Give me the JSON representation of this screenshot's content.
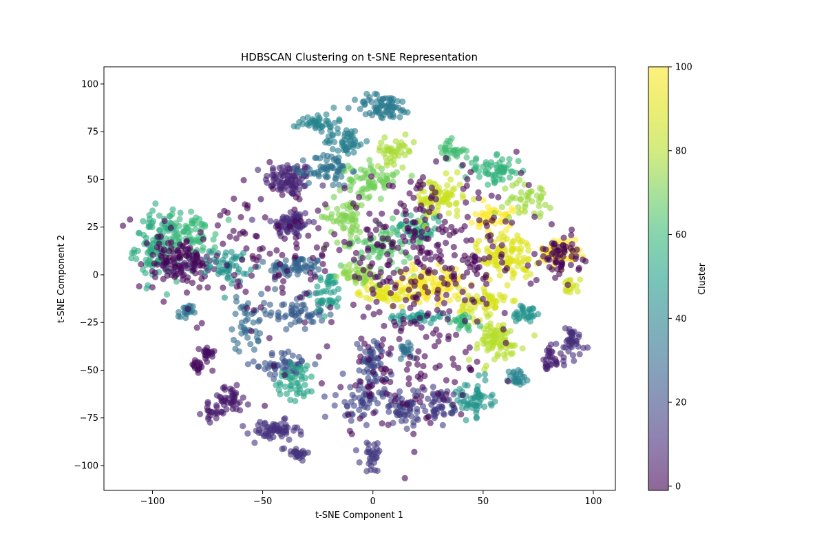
{
  "chart_data": {
    "type": "scatter",
    "title": "HDBSCAN Clustering on t-SNE Representation",
    "xlabel": "t-SNE Component 1",
    "ylabel": "t-SNE Component 2",
    "xlim": [
      -122,
      110
    ],
    "ylim": [
      -113,
      109
    ],
    "xticks": [
      -100,
      -50,
      0,
      50,
      100
    ],
    "yticks": [
      -100,
      -75,
      -50,
      -25,
      0,
      25,
      50,
      75,
      100
    ],
    "xtick_labels": [
      "−100",
      "−50",
      "0",
      "50",
      "100"
    ],
    "ytick_labels": [
      "−100",
      "−75",
      "−50",
      "−25",
      "0",
      "25",
      "50",
      "75",
      "100"
    ],
    "colorbar": {
      "label": "Cluster",
      "range": [
        -1,
        100
      ],
      "ticks": [
        0,
        20,
        40,
        60,
        80,
        100
      ],
      "tick_labels": [
        "0",
        "20",
        "40",
        "60",
        "80",
        "100"
      ],
      "colormap": "viridis",
      "alpha": 0.6
    },
    "grid": false,
    "noise_color": "#440154",
    "groups": [
      {
        "center": [
          -38,
          50
        ],
        "spread": [
          10,
          8
        ],
        "n": 90,
        "cluster": 8
      },
      {
        "center": [
          -37,
          27
        ],
        "spread": [
          8,
          7
        ],
        "n": 70,
        "cluster": 10
      },
      {
        "center": [
          -35,
          4
        ],
        "spread": [
          11,
          5
        ],
        "n": 60,
        "cluster": 28
      },
      {
        "center": [
          -35,
          -20
        ],
        "spread": [
          12,
          8
        ],
        "n": 60,
        "cluster": 25
      },
      {
        "center": [
          -40,
          -47
        ],
        "spread": [
          12,
          6
        ],
        "n": 50,
        "cluster": 22
      },
      {
        "center": [
          -57,
          -25
        ],
        "spread": [
          6,
          14
        ],
        "n": 40,
        "cluster": 30
      },
      {
        "center": [
          -98,
          15
        ],
        "spread": [
          9,
          16
        ],
        "n": 110,
        "cluster": 55
      },
      {
        "center": [
          -82,
          20
        ],
        "spread": [
          10,
          12
        ],
        "n": 70,
        "cluster": 60
      },
      {
        "center": [
          -85,
          5
        ],
        "spread": [
          12,
          6
        ],
        "n": 60,
        "cluster": 3
      },
      {
        "center": [
          -65,
          5
        ],
        "spread": [
          8,
          8
        ],
        "n": 50,
        "cluster": 45
      },
      {
        "center": [
          -85,
          -20
        ],
        "spread": [
          3,
          4
        ],
        "n": 20,
        "cluster": 35
      },
      {
        "center": [
          -75,
          -42
        ],
        "spread": [
          3,
          5
        ],
        "n": 20,
        "cluster": 2
      },
      {
        "center": [
          -80,
          -48
        ],
        "spread": [
          3,
          4
        ],
        "n": 15,
        "cluster": 1
      },
      {
        "center": [
          -65,
          -65
        ],
        "spread": [
          8,
          6
        ],
        "n": 40,
        "cluster": 5
      },
      {
        "center": [
          -72,
          -72
        ],
        "spread": [
          5,
          4
        ],
        "n": 20,
        "cluster": 6
      },
      {
        "center": [
          -45,
          -82
        ],
        "spread": [
          10,
          5
        ],
        "n": 60,
        "cluster": 12
      },
      {
        "center": [
          -35,
          -93
        ],
        "spread": [
          6,
          3
        ],
        "n": 25,
        "cluster": 13
      },
      {
        "center": [
          -25,
          80
        ],
        "spread": [
          8,
          4
        ],
        "n": 40,
        "cluster": 40
      },
      {
        "center": [
          -12,
          70
        ],
        "spread": [
          9,
          7
        ],
        "n": 50,
        "cluster": 38
      },
      {
        "center": [
          -20,
          55
        ],
        "spread": [
          9,
          8
        ],
        "n": 60,
        "cluster": 33
      },
      {
        "center": [
          5,
          88
        ],
        "spread": [
          12,
          6
        ],
        "n": 70,
        "cluster": 36
      },
      {
        "center": [
          -20,
          -10
        ],
        "spread": [
          6,
          10
        ],
        "n": 40,
        "cluster": 50
      },
      {
        "center": [
          -35,
          -55
        ],
        "spread": [
          8,
          10
        ],
        "n": 45,
        "cluster": 52
      },
      {
        "center": [
          -12,
          30
        ],
        "spread": [
          9,
          12
        ],
        "n": 60,
        "cluster": 72
      },
      {
        "center": [
          0,
          50
        ],
        "spread": [
          10,
          8
        ],
        "n": 60,
        "cluster": 70
      },
      {
        "center": [
          10,
          65
        ],
        "spread": [
          8,
          6
        ],
        "n": 40,
        "cluster": 78
      },
      {
        "center": [
          35,
          65
        ],
        "spread": [
          6,
          5
        ],
        "n": 30,
        "cluster": 62
      },
      {
        "center": [
          55,
          55
        ],
        "spread": [
          12,
          6
        ],
        "n": 60,
        "cluster": 58
      },
      {
        "center": [
          20,
          25
        ],
        "spread": [
          10,
          8
        ],
        "n": 50,
        "cluster": 54
      },
      {
        "center": [
          5,
          15
        ],
        "spread": [
          12,
          10
        ],
        "n": 60,
        "cluster": 65
      },
      {
        "center": [
          30,
          40
        ],
        "spread": [
          10,
          10
        ],
        "n": 80,
        "cluster": 85
      },
      {
        "center": [
          25,
          -5
        ],
        "spread": [
          14,
          8
        ],
        "n": 110,
        "cluster": 98
      },
      {
        "center": [
          5,
          -10
        ],
        "spread": [
          10,
          5
        ],
        "n": 50,
        "cluster": 92
      },
      {
        "center": [
          60,
          10
        ],
        "spread": [
          12,
          12
        ],
        "n": 100,
        "cluster": 90
      },
      {
        "center": [
          50,
          -15
        ],
        "spread": [
          10,
          8
        ],
        "n": 60,
        "cluster": 88
      },
      {
        "center": [
          55,
          30
        ],
        "spread": [
          8,
          6
        ],
        "n": 40,
        "cluster": 100
      },
      {
        "center": [
          85,
          12
        ],
        "spread": [
          8,
          6
        ],
        "n": 60,
        "cluster": 100
      },
      {
        "center": [
          90,
          -5
        ],
        "spread": [
          3,
          4
        ],
        "n": 15,
        "cluster": 86
      },
      {
        "center": [
          55,
          -35
        ],
        "spread": [
          12,
          10
        ],
        "n": 80,
        "cluster": 80
      },
      {
        "center": [
          70,
          40
        ],
        "spread": [
          10,
          8
        ],
        "n": 40,
        "cluster": 76
      },
      {
        "center": [
          -5,
          0
        ],
        "spread": [
          9,
          5
        ],
        "n": 40,
        "cluster": 74
      },
      {
        "center": [
          20,
          -22
        ],
        "spread": [
          12,
          3
        ],
        "n": 35,
        "cluster": 48
      },
      {
        "center": [
          40,
          -25
        ],
        "spread": [
          6,
          4
        ],
        "n": 25,
        "cluster": 60
      },
      {
        "center": [
          70,
          -20
        ],
        "spread": [
          6,
          5
        ],
        "n": 30,
        "cluster": 45
      },
      {
        "center": [
          45,
          -65
        ],
        "spread": [
          8,
          8
        ],
        "n": 60,
        "cluster": 46
      },
      {
        "center": [
          65,
          -55
        ],
        "spread": [
          4,
          5
        ],
        "n": 25,
        "cluster": 40
      },
      {
        "center": [
          15,
          -40
        ],
        "spread": [
          6,
          4
        ],
        "n": 20,
        "cluster": 32
      },
      {
        "center": [
          0,
          -45
        ],
        "spread": [
          6,
          10
        ],
        "n": 50,
        "cluster": 20
      },
      {
        "center": [
          -5,
          -65
        ],
        "spread": [
          10,
          10
        ],
        "n": 60,
        "cluster": 18
      },
      {
        "center": [
          15,
          -70
        ],
        "spread": [
          10,
          8
        ],
        "n": 60,
        "cluster": 16
      },
      {
        "center": [
          30,
          -68
        ],
        "spread": [
          6,
          8
        ],
        "n": 40,
        "cluster": 15
      },
      {
        "center": [
          0,
          -95
        ],
        "spread": [
          5,
          7
        ],
        "n": 30,
        "cluster": 14
      },
      {
        "center": [
          90,
          -35
        ],
        "spread": [
          6,
          10
        ],
        "n": 40,
        "cluster": 11
      },
      {
        "center": [
          80,
          -45
        ],
        "spread": [
          5,
          6
        ],
        "n": 30,
        "cluster": 7
      },
      {
        "center": [
          25,
          10
        ],
        "spread": [
          40,
          35
        ],
        "n": 280,
        "cluster": -1
      },
      {
        "center": [
          -55,
          10
        ],
        "spread": [
          40,
          30
        ],
        "n": 110,
        "cluster": -1
      },
      {
        "center": [
          10,
          -50
        ],
        "spread": [
          40,
          30
        ],
        "n": 110,
        "cluster": -1
      },
      {
        "center": [
          85,
          10
        ],
        "spread": [
          8,
          10
        ],
        "n": 60,
        "cluster": -1
      },
      {
        "center": [
          -90,
          10
        ],
        "spread": [
          10,
          10
        ],
        "n": 50,
        "cluster": -1
      }
    ]
  }
}
